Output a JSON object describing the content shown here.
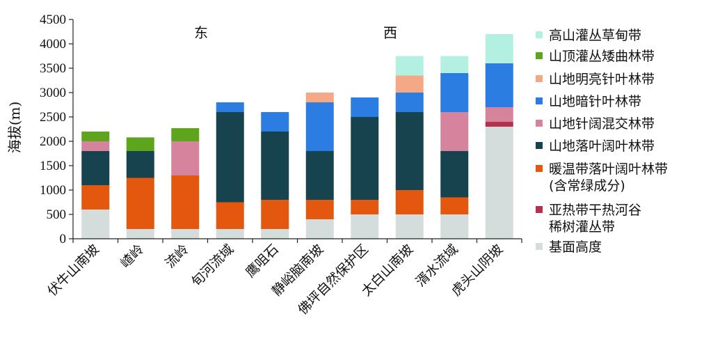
{
  "chart_data": {
    "type": "bar",
    "stacked": true,
    "title": "",
    "xlabel": "",
    "ylabel": "海拔(m)",
    "ylim": [
      0,
      4500
    ],
    "yticks": [
      0,
      500,
      1000,
      1500,
      2000,
      2500,
      3000,
      3500,
      4000,
      4500
    ],
    "grid": false,
    "legend_position": "right",
    "annotations": [
      "东",
      "西"
    ],
    "categories": [
      "伏牛山南坡",
      "嵖岭",
      "流岭",
      "旬河流域",
      "鹰咀石",
      "静峪脑南坡",
      "佛坪自然保护区",
      "太白山南坡",
      "湑水流域",
      "虎头山阴坡"
    ],
    "series": [
      {
        "name": "基面高度",
        "color": "#d5dcdc",
        "values": [
          600,
          200,
          200,
          200,
          200,
          400,
          500,
          500,
          500,
          2300
        ]
      },
      {
        "name": "亚热带干热河谷稀树灌丛带",
        "color": "#b5304b",
        "values": [
          0,
          0,
          0,
          0,
          0,
          0,
          0,
          0,
          0,
          100
        ]
      },
      {
        "name": "暖温带落叶阔叶林带(含常绿成分)",
        "color": "#e4570f",
        "values": [
          500,
          1050,
          1100,
          550,
          600,
          400,
          300,
          500,
          350,
          0
        ]
      },
      {
        "name": "山地落叶阔叶林带",
        "color": "#17434f",
        "values": [
          700,
          550,
          0,
          1850,
          1400,
          1000,
          1700,
          1600,
          950,
          0
        ]
      },
      {
        "name": "山地针阔混交林带",
        "color": "#d6839e",
        "values": [
          200,
          0,
          700,
          0,
          0,
          0,
          0,
          0,
          800,
          300
        ]
      },
      {
        "name": "山地暗针叶林带",
        "color": "#2c7de2",
        "values": [
          0,
          0,
          0,
          200,
          400,
          1000,
          400,
          400,
          800,
          900
        ]
      },
      {
        "name": "山地明亮针叶林带",
        "color": "#f4a886",
        "values": [
          0,
          0,
          0,
          0,
          0,
          200,
          0,
          350,
          0,
          0
        ]
      },
      {
        "name": "山顶灌丛矮曲林带",
        "color": "#5ea51e",
        "values": [
          200,
          280,
          270,
          0,
          0,
          0,
          0,
          0,
          0,
          0
        ]
      },
      {
        "name": "高山灌丛草甸带",
        "color": "#b4f0e2",
        "values": [
          0,
          0,
          0,
          0,
          0,
          0,
          0,
          400,
          350,
          600
        ]
      }
    ],
    "legend": [
      {
        "lines": [
          "高山灌丛草甸带"
        ],
        "color": "#b4f0e2"
      },
      {
        "lines": [
          "山顶灌丛矮曲林带"
        ],
        "color": "#5ea51e"
      },
      {
        "lines": [
          "山地明亮针叶林带"
        ],
        "color": "#f4a886"
      },
      {
        "lines": [
          "山地暗针叶林带"
        ],
        "color": "#2c7de2"
      },
      {
        "lines": [
          "山地针阔混交林带"
        ],
        "color": "#d6839e"
      },
      {
        "lines": [
          "山地落叶阔叶林带"
        ],
        "color": "#17434f"
      },
      {
        "lines": [
          "暖温带落叶阔叶林带",
          "(含常绿成分)"
        ],
        "color": "#e4570f"
      },
      {
        "lines": [
          "亚热带干热河谷",
          "稀树灌丛带"
        ],
        "color": "#b5304b"
      },
      {
        "lines": [
          "基面高度"
        ],
        "color": "#d5dcdc"
      }
    ]
  }
}
